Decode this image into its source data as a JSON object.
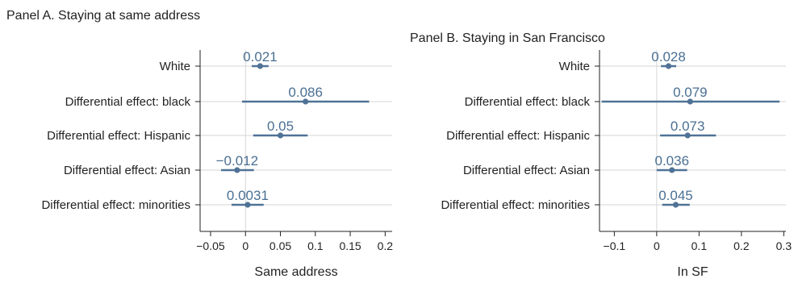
{
  "chart_data": [
    {
      "type": "coefficient-plot",
      "title": "Panel A. Staying at same address",
      "xlabel": "Same address",
      "xlim": [
        -0.065,
        0.21
      ],
      "xticks": [
        -0.05,
        0,
        0.05,
        0.1,
        0.15,
        0.2
      ],
      "xtick_labels": [
        "−0.05",
        "0",
        "0.05",
        "0.1",
        "0.15",
        "0.2"
      ],
      "categories": [
        "White",
        "Differential effect: black",
        "Differential effect: Hispanic",
        "Differential effect: Asian",
        "Differential effect: minorities"
      ],
      "estimates": [
        0.021,
        0.086,
        0.05,
        -0.012,
        0.0031
      ],
      "labels": [
        "0.021",
        "0.086",
        "0.05",
        "−0.012",
        "0.0031"
      ],
      "ci_low": [
        0.009,
        -0.005,
        0.011,
        -0.035,
        -0.02
      ],
      "ci_high": [
        0.033,
        0.177,
        0.089,
        0.012,
        0.026
      ],
      "grid": true
    },
    {
      "type": "coefficient-plot",
      "title": "Panel B. Staying in San Francisco",
      "xlabel": "In SF",
      "xlim": [
        -0.135,
        0.305
      ],
      "xticks": [
        -0.1,
        0,
        0.1,
        0.2,
        0.3
      ],
      "xtick_labels": [
        "−0.1",
        "0",
        "0.1",
        "0.2",
        "0.3"
      ],
      "categories": [
        "White",
        "Differential effect: black",
        "Differential effect: Hispanic",
        "Differential effect: Asian",
        "Differential effect: minorities"
      ],
      "estimates": [
        0.028,
        0.079,
        0.073,
        0.036,
        0.045
      ],
      "labels": [
        "0.028",
        "0.079",
        "0.073",
        "0.036",
        "0.045"
      ],
      "ci_low": [
        0.01,
        -0.13,
        0.008,
        0.0,
        0.013
      ],
      "ci_high": [
        0.046,
        0.29,
        0.14,
        0.072,
        0.078
      ],
      "grid": true
    }
  ]
}
